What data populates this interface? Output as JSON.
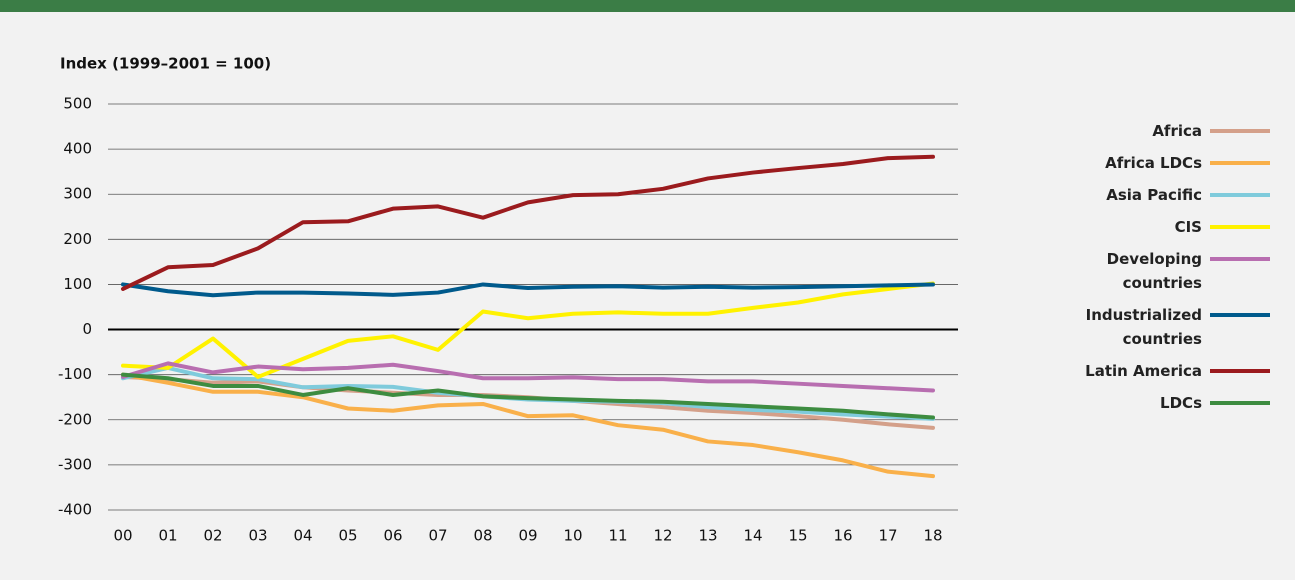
{
  "chart_data": {
    "type": "line",
    "y_label": "Index (1999–2001 = 100)",
    "categories": [
      "00",
      "01",
      "02",
      "03",
      "04",
      "05",
      "06",
      "07",
      "08",
      "09",
      "10",
      "11",
      "12",
      "13",
      "14",
      "15",
      "16",
      "17",
      "18"
    ],
    "ylim": [
      -400,
      500
    ],
    "yticks": [
      -400,
      -300,
      -200,
      -100,
      0,
      100,
      200,
      300,
      400,
      500
    ],
    "grid": true,
    "series": [
      {
        "name": "Africa",
        "color": "#d4a08a",
        "values": [
          -105,
          -110,
          -118,
          -115,
          -128,
          -135,
          -140,
          -145,
          -145,
          -150,
          -158,
          -165,
          -172,
          -180,
          -185,
          -192,
          -200,
          -210,
          -218
        ]
      },
      {
        "name": "Africa LDCs",
        "color": "#f9b04a",
        "values": [
          -100,
          -118,
          -138,
          -138,
          -150,
          -175,
          -180,
          -168,
          -165,
          -192,
          -190,
          -212,
          -222,
          -248,
          -256,
          -272,
          -290,
          -315,
          -325
        ]
      },
      {
        "name": "Asia Pacific",
        "color": "#7fcbdc",
        "values": [
          -108,
          -85,
          -108,
          -110,
          -128,
          -125,
          -127,
          -140,
          -148,
          -155,
          -158,
          -160,
          -163,
          -172,
          -178,
          -182,
          -188,
          -193,
          -198
        ]
      },
      {
        "name": "CIS",
        "color": "#fff200",
        "values": [
          -80,
          -85,
          -20,
          -105,
          -65,
          -25,
          -15,
          -45,
          40,
          25,
          35,
          38,
          35,
          35,
          48,
          60,
          78,
          90,
          102
        ]
      },
      {
        "name": "Developing countries",
        "color": "#b86eb0",
        "values": [
          -105,
          -75,
          -95,
          -82,
          -88,
          -85,
          -78,
          -92,
          -108,
          -108,
          -106,
          -110,
          -110,
          -115,
          -115,
          -120,
          -125,
          -130,
          -135
        ]
      },
      {
        "name": "Industrialized countries",
        "color": "#005a8c",
        "values": [
          100,
          85,
          76,
          82,
          82,
          80,
          77,
          82,
          100,
          92,
          95,
          96,
          93,
          95,
          93,
          94,
          96,
          98,
          100
        ]
      },
      {
        "name": "Latin America",
        "color": "#9b1b1e",
        "values": [
          90,
          138,
          143,
          180,
          238,
          240,
          268,
          273,
          248,
          282,
          298,
          300,
          312,
          335,
          348,
          358,
          367,
          380,
          383
        ]
      },
      {
        "name": "LDCs",
        "color": "#3d8c40",
        "values": [
          -100,
          -108,
          -125,
          -125,
          -145,
          -130,
          -145,
          -135,
          -148,
          -152,
          -155,
          -158,
          -160,
          -165,
          -170,
          -175,
          -180,
          -188,
          -195
        ]
      }
    ]
  }
}
